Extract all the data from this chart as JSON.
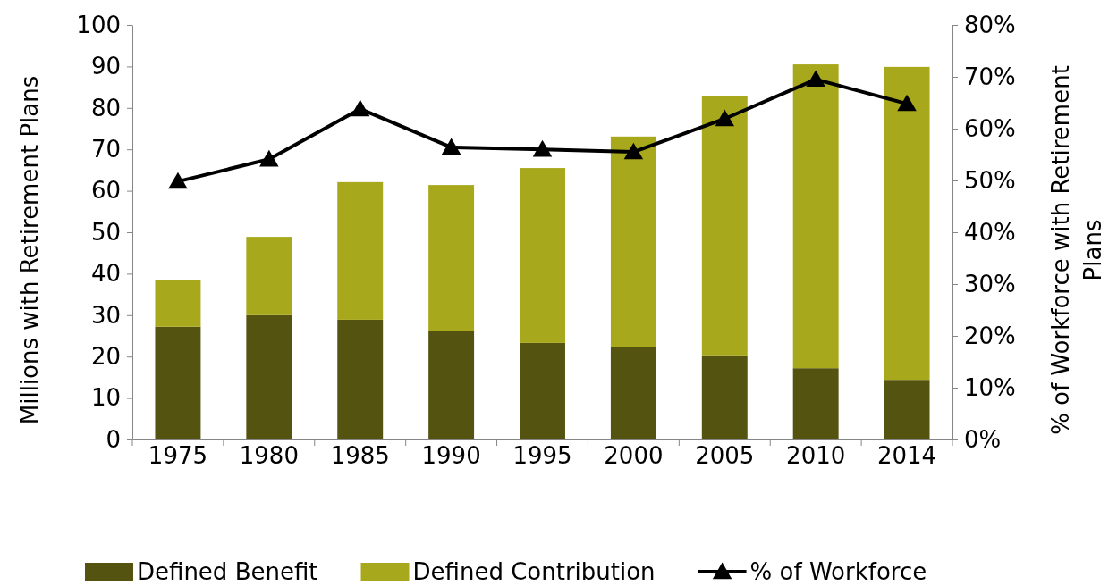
{
  "chart_data": {
    "type": "bar",
    "stacked": true,
    "categories": [
      "1975",
      "1980",
      "1985",
      "1990",
      "1995",
      "2000",
      "2005",
      "2010",
      "2014"
    ],
    "series": [
      {
        "name": "Defined Benefit",
        "color": "#545410",
        "values": [
          27.2,
          30.0,
          28.9,
          26.1,
          23.3,
          22.2,
          20.3,
          17.2,
          14.4
        ]
      },
      {
        "name": "Defined Contribution",
        "color": "#a8a81c",
        "values": [
          11.2,
          18.9,
          33.2,
          35.3,
          42.2,
          50.9,
          62.5,
          73.3,
          75.5
        ]
      },
      {
        "name": "% of Workforce",
        "type": "line",
        "axis": "y2",
        "color": "#000000",
        "marker": "triangle",
        "values": [
          49.8,
          54.1,
          63.8,
          56.4,
          56.0,
          55.5,
          61.9,
          69.5,
          64.8
        ]
      }
    ],
    "ylabel": "Millions with Retirement Plans",
    "y2label": "% of Workforce with Retirement Plans",
    "ylim": [
      0,
      100
    ],
    "yticks": [
      0,
      10,
      20,
      30,
      40,
      50,
      60,
      70,
      80,
      90,
      100
    ],
    "y2lim": [
      0,
      80
    ],
    "y2ticks": [
      {
        "value": 0,
        "label": "0%"
      },
      {
        "value": 10,
        "label": "10%"
      },
      {
        "value": 20,
        "label": "20%"
      },
      {
        "value": 30,
        "label": "30%"
      },
      {
        "value": 40,
        "label": "40%"
      },
      {
        "value": 50,
        "label": "50%"
      },
      {
        "value": 60,
        "label": "60%"
      },
      {
        "value": 70,
        "label": "70%"
      },
      {
        "value": 80,
        "label": "80%"
      }
    ],
    "legend": "bottom",
    "grid": false
  }
}
